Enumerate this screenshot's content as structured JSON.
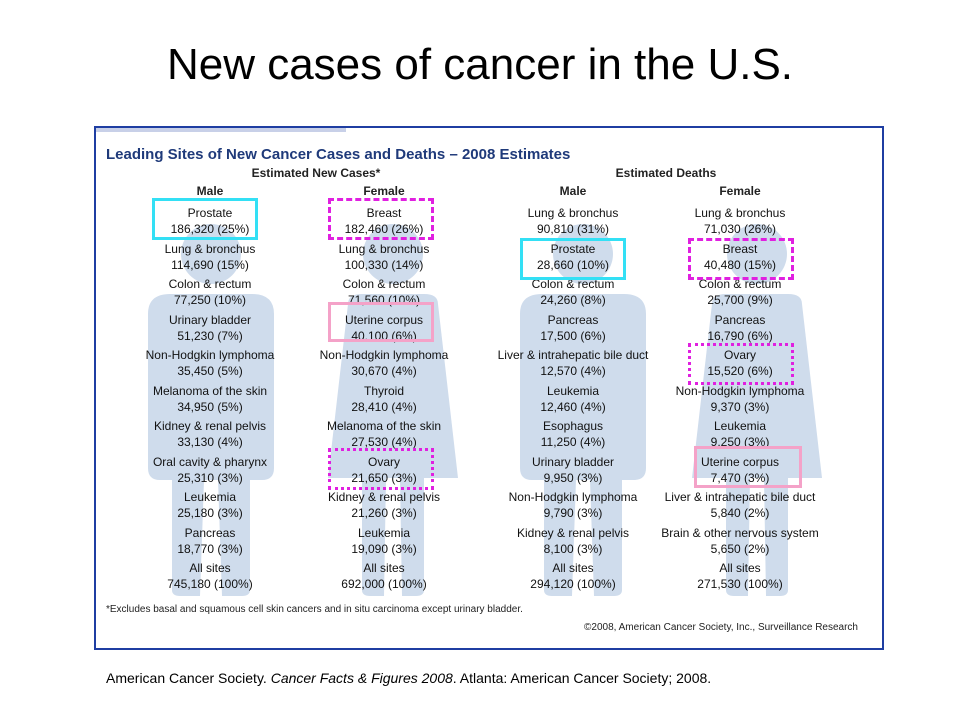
{
  "slide": {
    "title": "New cases of cancer in the U.S.",
    "citation": {
      "pre": "American Cancer Society. ",
      "italic": "Cancer Facts & Figures 2008",
      "post": ". Atlanta: American Cancer Society; 2008."
    }
  },
  "figure": {
    "heading": "Leading Sites of New Cancer Cases and Deaths – 2008 Estimates",
    "groups": [
      "Estimated New Cases*",
      "Estimated Deaths"
    ],
    "footnote": "*Excludes basal and squamous cell skin cancers and in situ carcinoma except urinary bladder.",
    "copyright": "©2008, American Cancer Society, Inc., Surveillance Research",
    "colors": {
      "border": "#1f3ea2",
      "heading": "#1f3a7a",
      "silhouette": "#cfdcec",
      "cyan": "#33e0f5",
      "magenta": "#e020e0",
      "pink": "#f4a2c8"
    },
    "columns": [
      {
        "label": "Male",
        "entries": [
          {
            "name": "Prostate",
            "value": "186,320 (25%)"
          },
          {
            "name": "Lung & bronchus",
            "value": "114,690 (15%)"
          },
          {
            "name": "Colon & rectum",
            "value": "77,250 (10%)"
          },
          {
            "name": "Urinary bladder",
            "value": "51,230 (7%)"
          },
          {
            "name": "Non-Hodgkin lymphoma",
            "value": "35,450 (5%)"
          },
          {
            "name": "Melanoma of the skin",
            "value": "34,950 (5%)"
          },
          {
            "name": "Kidney & renal pelvis",
            "value": "33,130 (4%)"
          },
          {
            "name": "Oral cavity & pharynx",
            "value": "25,310 (3%)"
          },
          {
            "name": "Leukemia",
            "value": "25,180 (3%)"
          },
          {
            "name": "Pancreas",
            "value": "18,770 (3%)"
          },
          {
            "name": "All sites",
            "value": "745,180 (100%)"
          }
        ]
      },
      {
        "label": "Female",
        "entries": [
          {
            "name": "Breast",
            "value": "182,460 (26%)"
          },
          {
            "name": "Lung & bronchus",
            "value": "100,330 (14%)"
          },
          {
            "name": "Colon & rectum",
            "value": "71,560 (10%)"
          },
          {
            "name": "Uterine corpus",
            "value": "40,100 (6%)"
          },
          {
            "name": "Non-Hodgkin lymphoma",
            "value": "30,670 (4%)"
          },
          {
            "name": "Thyroid",
            "value": "28,410 (4%)"
          },
          {
            "name": "Melanoma of the skin",
            "value": "27,530 (4%)"
          },
          {
            "name": "Ovary",
            "value": "21,650 (3%)"
          },
          {
            "name": "Kidney & renal pelvis",
            "value": "21,260 (3%)"
          },
          {
            "name": "Leukemia",
            "value": "19,090 (3%)"
          },
          {
            "name": "All sites",
            "value": "692,000 (100%)"
          }
        ]
      },
      {
        "label": "Male",
        "entries": [
          {
            "name": "Lung & bronchus",
            "value": "90,810 (31%)"
          },
          {
            "name": "Prostate",
            "value": "28,660 (10%)"
          },
          {
            "name": "Colon & rectum",
            "value": "24,260 (8%)"
          },
          {
            "name": "Pancreas",
            "value": "17,500 (6%)"
          },
          {
            "name": "Liver & intrahepatic bile duct",
            "value": "12,570 (4%)"
          },
          {
            "name": "Leukemia",
            "value": "12,460 (4%)"
          },
          {
            "name": "Esophagus",
            "value": "11,250 (4%)"
          },
          {
            "name": "Urinary bladder",
            "value": "9,950 (3%)"
          },
          {
            "name": "Non-Hodgkin lymphoma",
            "value": "9,790 (3%)"
          },
          {
            "name": "Kidney & renal pelvis",
            "value": "8,100 (3%)"
          },
          {
            "name": "All sites",
            "value": "294,120 (100%)"
          }
        ]
      },
      {
        "label": "Female",
        "entries": [
          {
            "name": "Lung & bronchus",
            "value": "71,030 (26%)"
          },
          {
            "name": "Breast",
            "value": "40,480 (15%)"
          },
          {
            "name": "Colon & rectum",
            "value": "25,700 (9%)"
          },
          {
            "name": "Pancreas",
            "value": "16,790 (6%)"
          },
          {
            "name": "Ovary",
            "value": "15,520 (6%)"
          },
          {
            "name": "Non-Hodgkin lymphoma",
            "value": "9,370 (3%)"
          },
          {
            "name": "Leukemia",
            "value": "9,250 (3%)"
          },
          {
            "name": "Uterine corpus",
            "value": "7,470 (3%)"
          },
          {
            "name": "Liver & intrahepatic bile duct",
            "value": "5,840 (2%)"
          },
          {
            "name": "Brain & other nervous system",
            "value": "5,650 (2%)"
          },
          {
            "name": "All sites",
            "value": "271,530 (100%)"
          }
        ]
      }
    ]
  }
}
